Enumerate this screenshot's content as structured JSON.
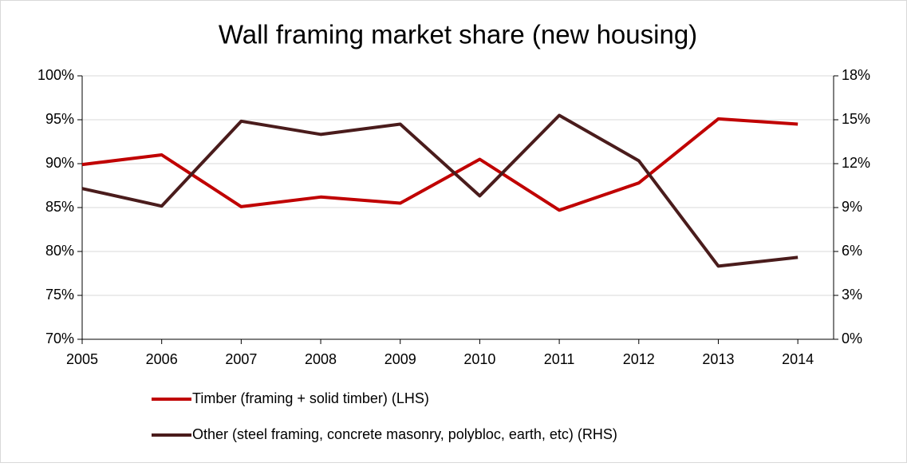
{
  "chart_data": {
    "type": "line",
    "title": "Wall framing market share (new housing)",
    "x": [
      2005,
      2006,
      2007,
      2008,
      2009,
      2010,
      2011,
      2012,
      2013,
      2014
    ],
    "xlim": [
      2005,
      2014.45
    ],
    "xticks": [
      2005,
      2006,
      2007,
      2008,
      2009,
      2010,
      2011,
      2012,
      2013,
      2014
    ],
    "ylim": [
      70,
      100
    ],
    "yticks": [
      {
        "value": 70,
        "label": "70%"
      },
      {
        "value": 75,
        "label": "75%"
      },
      {
        "value": 80,
        "label": "80%"
      },
      {
        "value": 85,
        "label": "85%"
      },
      {
        "value": 90,
        "label": "90%"
      },
      {
        "value": 95,
        "label": "95%"
      },
      {
        "value": 100,
        "label": "100%"
      }
    ],
    "y2lim": [
      0,
      18
    ],
    "y2ticks": [
      {
        "value": 0,
        "label": "0%"
      },
      {
        "value": 3,
        "label": "3%"
      },
      {
        "value": 6,
        "label": "6%"
      },
      {
        "value": 9,
        "label": "9%"
      },
      {
        "value": 12,
        "label": "12%"
      },
      {
        "value": 15,
        "label": "15%"
      },
      {
        "value": 18,
        "label": "18%"
      }
    ],
    "grid": true,
    "legend": "bottom",
    "series": [
      {
        "name": "Timber (framing + solid timber) (LHS)",
        "color": "#c00000",
        "values": [
          89.9,
          91.0,
          85.1,
          86.2,
          85.5,
          90.5,
          84.7,
          87.8,
          95.1,
          94.5
        ]
      },
      {
        "name": "Other (steel framing, concrete masonry, polybloc, earth, etc) (RHS)",
        "color": "#4a1c1c",
        "axis": "y2",
        "values": [
          10.3,
          9.1,
          14.9,
          14.0,
          14.7,
          9.8,
          15.3,
          12.2,
          5.0,
          5.6
        ]
      }
    ]
  }
}
